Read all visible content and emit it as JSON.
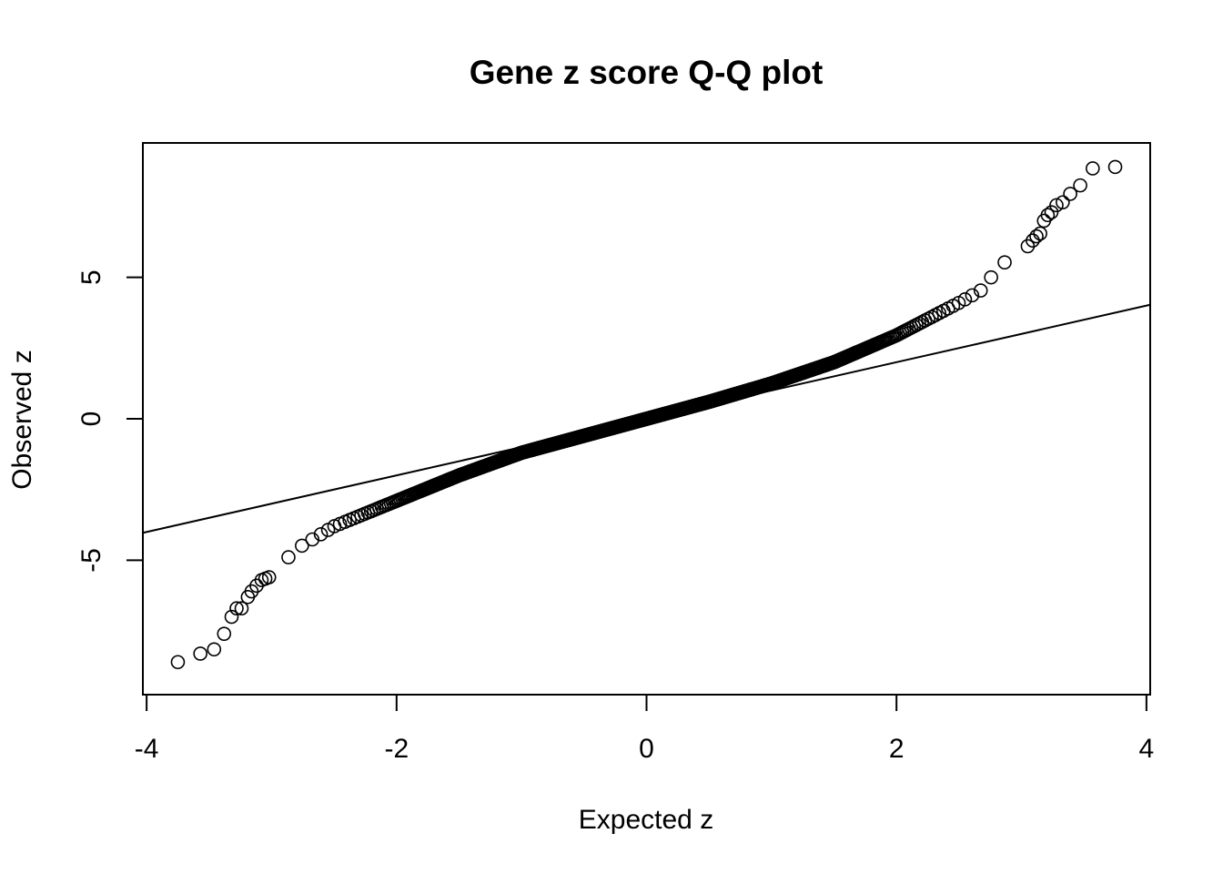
{
  "chart_data": {
    "type": "scatter",
    "title": "Gene z score Q-Q plot",
    "xlabel": "Expected z",
    "ylabel": "Observed z",
    "xlim": [
      -4.03,
      4.03
    ],
    "ylim": [
      -9.75,
      9.75
    ],
    "x_ticks": [
      -4,
      -2,
      0,
      2,
      4
    ],
    "x_tick_labels": [
      "-4",
      "-2",
      "0",
      "2",
      "4"
    ],
    "y_ticks": [
      -5,
      0,
      5
    ],
    "y_tick_labels": [
      "-5",
      "0",
      "5"
    ],
    "grid": false,
    "legend": "none",
    "marker": "open-circle",
    "reference_line": {
      "intercept": 0,
      "slope": 1.0
    },
    "sample_count": 1200,
    "points_profile": {
      "note": "Observed z as a function of expected z (piecewise-linear profile of the Q-Q point cloud)",
      "x": [
        -3.0,
        -2.8,
        -2.5,
        -2.0,
        -1.5,
        -1.0,
        -0.5,
        0.0,
        0.5,
        1.0,
        1.5,
        2.0,
        2.5,
        2.7,
        2.8,
        3.0
      ],
      "y": [
        -5.5,
        -4.6,
        -3.8,
        -2.9,
        -2.0,
        -1.2,
        -0.6,
        0.0,
        0.6,
        1.25,
        2.0,
        2.95,
        4.1,
        4.6,
        5.3,
        6.0
      ]
    },
    "tail_points": {
      "x": [
        -3.75,
        -3.57,
        -3.46,
        -3.38,
        -3.32,
        -3.28,
        -3.24,
        -3.19,
        -3.16,
        -3.12,
        -3.08,
        -3.05,
        -3.02,
        3.05,
        3.09,
        3.12,
        3.15,
        3.18,
        3.21,
        3.24,
        3.28,
        3.33,
        3.39,
        3.47,
        3.57,
        3.75
      ],
      "y": [
        -8.6,
        -8.3,
        -8.15,
        -7.6,
        -7.0,
        -6.7,
        -6.7,
        -6.3,
        -6.1,
        -5.9,
        -5.7,
        -5.65,
        -5.6,
        6.1,
        6.3,
        6.45,
        6.55,
        7.0,
        7.2,
        7.3,
        7.55,
        7.65,
        7.95,
        8.25,
        8.85,
        8.9
      ]
    },
    "colors": {
      "points": "#000000",
      "line": "#000000",
      "background": "#ffffff"
    }
  }
}
